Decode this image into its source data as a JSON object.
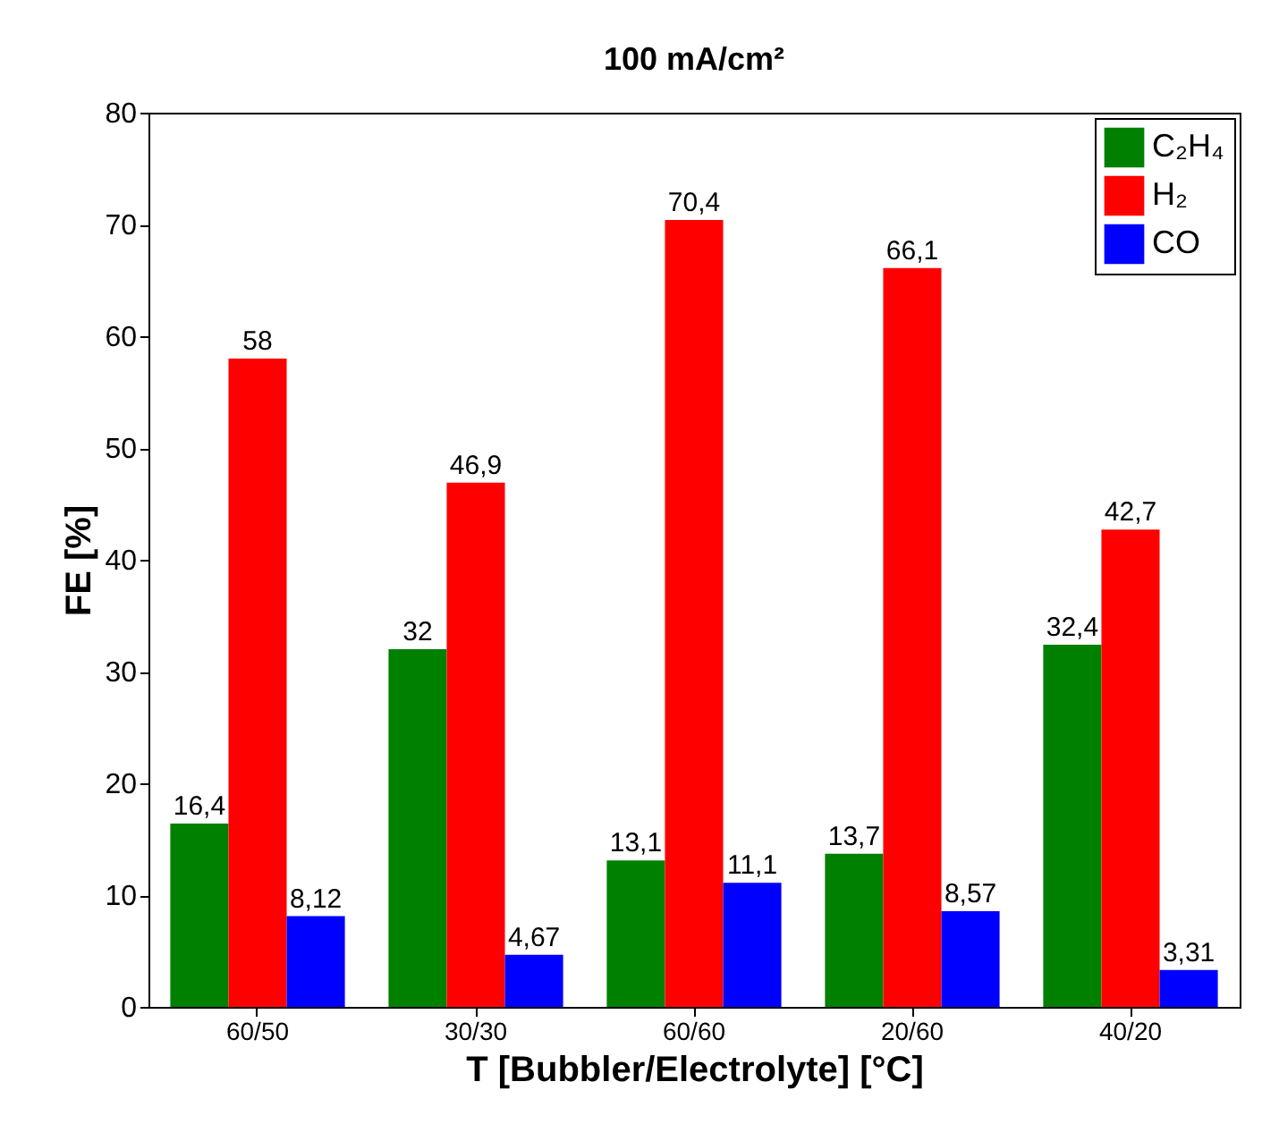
{
  "chart_data": {
    "type": "bar",
    "title": "100 mA/cm²",
    "xlabel": "T [Bubbler/Electrolyte] [°C]",
    "ylabel": "FE [%]",
    "categories": [
      "60/50",
      "30/30",
      "60/60",
      "20/60",
      "40/20"
    ],
    "series": [
      {
        "name": "C₂H₄",
        "color": "#008000",
        "values": [
          16.4,
          32,
          13.1,
          13.7,
          32.4
        ],
        "value_labels": [
          "16,4",
          "32",
          "13,1",
          "13,7",
          "32,4"
        ]
      },
      {
        "name": "H₂",
        "color": "#ff0000",
        "values": [
          58,
          46.9,
          70.4,
          66.1,
          42.7
        ],
        "value_labels": [
          "58",
          "46,9",
          "70,4",
          "66,1",
          "42,7"
        ]
      },
      {
        "name": "CO",
        "color": "#0000ff",
        "values": [
          8.12,
          4.67,
          11.1,
          8.57,
          3.31
        ],
        "value_labels": [
          "8,12",
          "4,67",
          "11,1",
          "8,57",
          "3,31"
        ]
      }
    ],
    "ylim": [
      0,
      80
    ],
    "yticks": [
      0,
      10,
      20,
      30,
      40,
      50,
      60,
      70,
      80
    ],
    "legend": "top right",
    "grid": false
  }
}
